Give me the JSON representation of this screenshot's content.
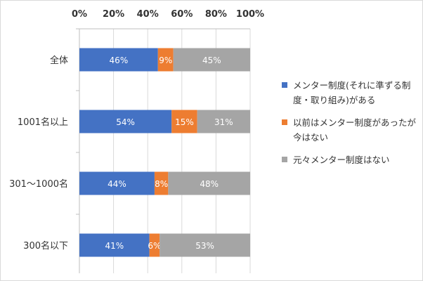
{
  "chart_data": {
    "type": "bar",
    "orientation": "horizontal",
    "stacked": true,
    "percent": true,
    "categories": [
      "全体",
      "1001名以上",
      "301～1000名",
      "300名以下"
    ],
    "series": [
      {
        "name": "メンター制度(それに準ずる制度・取り組み)がある",
        "color": "#4472c4",
        "values": [
          46,
          54,
          44,
          41
        ]
      },
      {
        "name": "以前はメンター制度があったが今はない",
        "color": "#ed7d31",
        "values": [
          9,
          15,
          8,
          6
        ]
      },
      {
        "name": "元々メンター制度はない",
        "color": "#a5a5a5",
        "values": [
          45,
          31,
          48,
          53
        ]
      }
    ],
    "xlim": [
      0,
      100
    ],
    "x_ticks": [
      "0%",
      "20%",
      "40%",
      "60%",
      "80%",
      "100%"
    ],
    "x_axis_position": "top",
    "grid": true,
    "legend_position": "right"
  }
}
